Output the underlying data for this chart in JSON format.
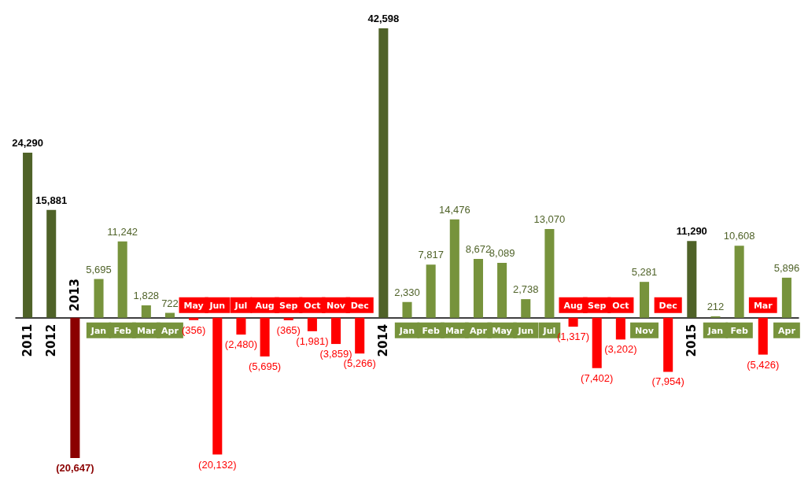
{
  "chart_data": {
    "type": "bar",
    "categories": [
      "2011",
      "2012",
      "2013",
      "Jan",
      "Feb",
      "Mar",
      "Apr",
      "May",
      "Jun",
      "Jul",
      "Aug",
      "Sep",
      "Oct",
      "Nov",
      "Dec",
      "2014",
      "Jan",
      "Feb",
      "Mar",
      "Apr",
      "May",
      "Jun",
      "Jul",
      "Aug",
      "Sep",
      "Oct",
      "Nov",
      "Dec",
      "2015",
      "Jan",
      "Feb",
      "Mar",
      "Apr"
    ],
    "values": [
      24290,
      15881,
      -20647,
      5695,
      11242,
      1828,
      722,
      -356,
      -20132,
      -2480,
      -5695,
      -365,
      -1981,
      -3859,
      -5266,
      42598,
      2330,
      7817,
      14476,
      8672,
      8089,
      2738,
      13070,
      -1317,
      -7402,
      -3202,
      5281,
      -7954,
      11290,
      212,
      10608,
      -5426,
      5896
    ],
    "colors": [
      "#4f6228",
      "#4f6228",
      "#8b0000",
      "#77933c",
      "#77933c",
      "#77933c",
      "#77933c",
      "#ff0000",
      "#ff0000",
      "#ff0000",
      "#ff0000",
      "#ff0000",
      "#ff0000",
      "#ff0000",
      "#ff0000",
      "#4f6228",
      "#77933c",
      "#77933c",
      "#77933c",
      "#77933c",
      "#77933c",
      "#77933c",
      "#77933c",
      "#ff0000",
      "#ff0000",
      "#ff0000",
      "#77933c",
      "#ff0000",
      "#4f6228",
      "#77933c",
      "#77933c",
      "#ff0000",
      "#77933c"
    ],
    "value_labels": [
      "24,290",
      "15,881",
      "(20,647)",
      "5,695",
      "11,242",
      "1,828",
      "722",
      "(356)",
      "(20,132)",
      "(2,480)",
      "(5,695)",
      "(365)",
      "(1,981)",
      "(3,859)",
      "(5,266)",
      "42,598",
      "2,330",
      "7,817",
      "14,476",
      "8,672",
      "8,089",
      "2,738",
      "13,070",
      "(1,317)",
      "(7,402)",
      "(3,202)",
      "5,281",
      "(7,954)",
      "11,290",
      "212",
      "10,608",
      "(5,426)",
      "5,896"
    ]
  }
}
